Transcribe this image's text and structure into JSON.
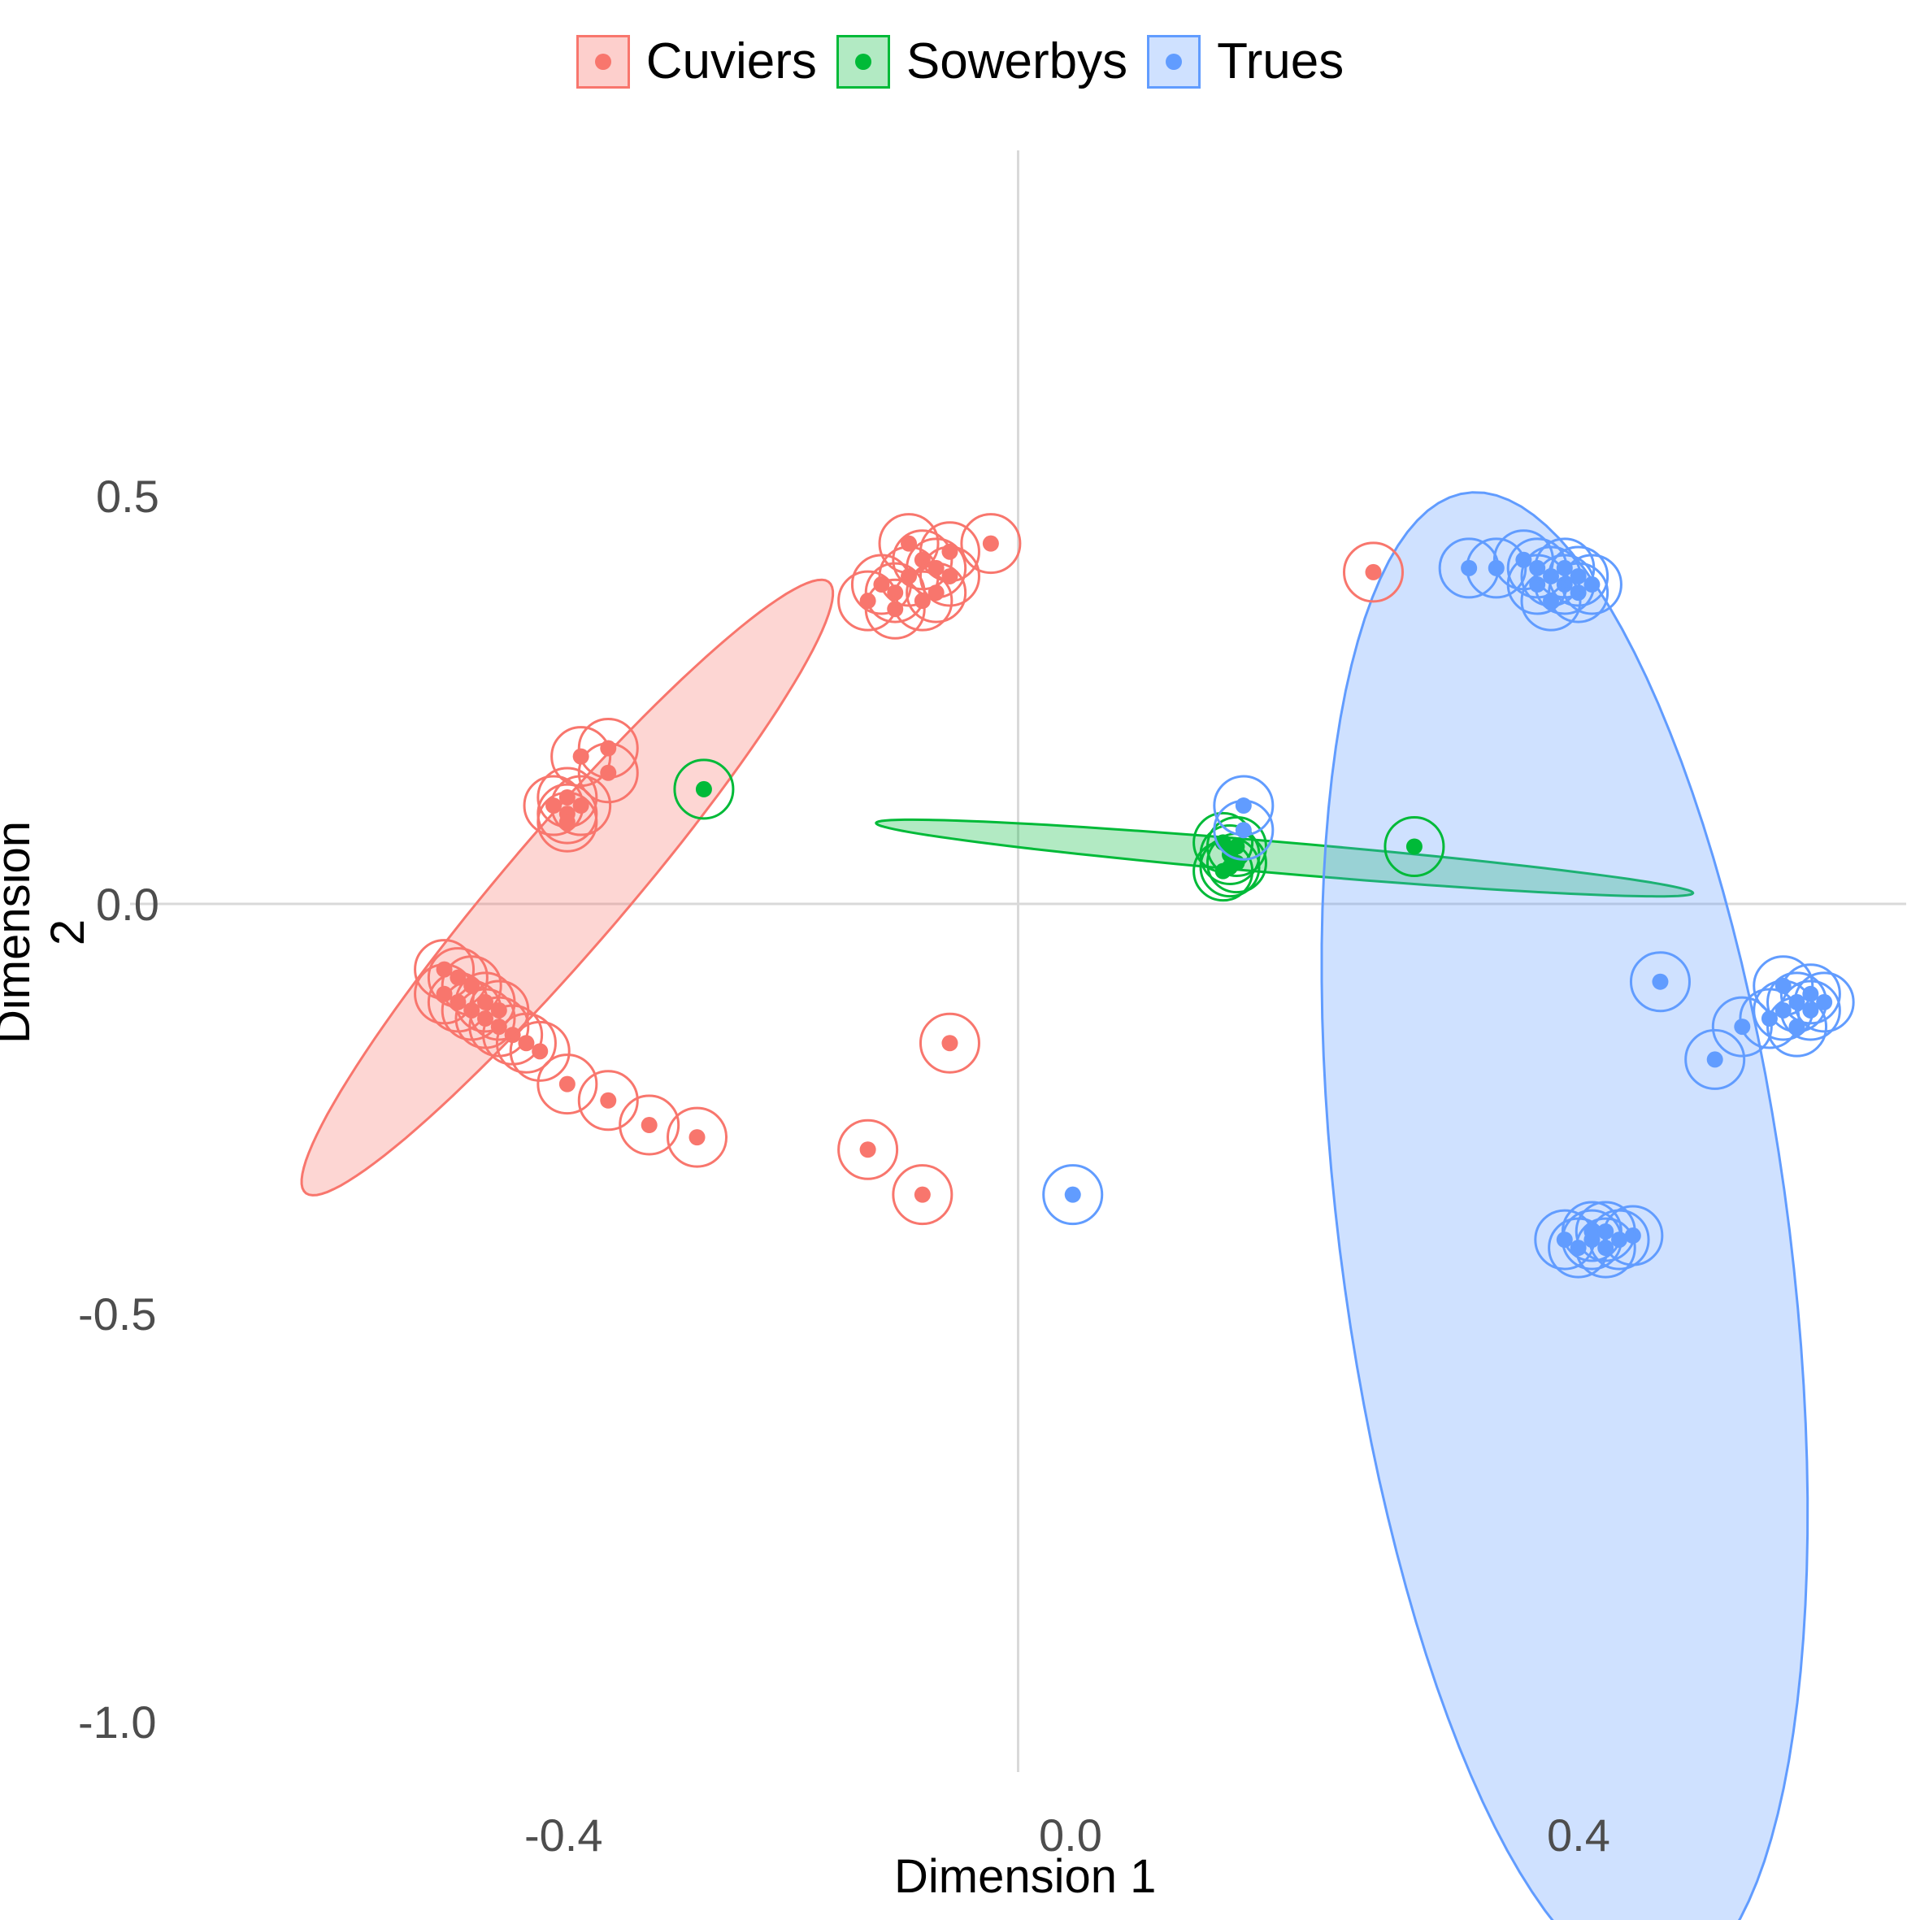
{
  "chart_data": {
    "type": "scatter",
    "title": "",
    "xlabel": "Dimension 1",
    "ylabel": "Dimension 2",
    "xlim": [
      -0.65,
      0.65
    ],
    "ylim": [
      -1.06,
      0.92
    ],
    "x_ticks": [
      "-0.4",
      "0.0",
      "0.4"
    ],
    "y_ticks": [
      "0.5",
      "0.0",
      "-0.5",
      "-1.0"
    ],
    "grid": "zero lines only",
    "legend_position": "top",
    "series": [
      {
        "name": "Cuviers",
        "color": "#F8766D",
        "points": [
          [
            -0.09,
            0.38
          ],
          [
            -0.08,
            0.4
          ],
          [
            -0.07,
            0.42
          ],
          [
            -0.06,
            0.41
          ],
          [
            -0.05,
            0.43
          ],
          [
            -0.09,
            0.36
          ],
          [
            -0.1,
            0.39
          ],
          [
            -0.06,
            0.38
          ],
          [
            -0.08,
            0.44
          ],
          [
            -0.07,
            0.37
          ],
          [
            -0.11,
            0.37
          ],
          [
            -0.05,
            0.4
          ],
          [
            -0.02,
            0.44
          ],
          [
            -0.3,
            0.19
          ],
          [
            -0.32,
            0.18
          ],
          [
            -0.3,
            0.16
          ],
          [
            -0.33,
            0.13
          ],
          [
            -0.32,
            0.12
          ],
          [
            -0.33,
            0.11
          ],
          [
            -0.34,
            0.12
          ],
          [
            -0.33,
            0.1
          ],
          [
            -0.41,
            -0.09
          ],
          [
            -0.42,
            -0.11
          ],
          [
            -0.41,
            -0.12
          ],
          [
            -0.4,
            -0.13
          ],
          [
            -0.39,
            -0.14
          ],
          [
            -0.4,
            -0.1
          ],
          [
            -0.38,
            -0.15
          ],
          [
            -0.37,
            -0.16
          ],
          [
            -0.36,
            -0.17
          ],
          [
            -0.35,
            -0.18
          ],
          [
            -0.42,
            -0.08
          ],
          [
            -0.39,
            -0.12
          ],
          [
            -0.38,
            -0.13
          ],
          [
            -0.33,
            -0.22
          ],
          [
            -0.3,
            -0.24
          ],
          [
            -0.27,
            -0.27
          ],
          [
            -0.235,
            -0.285
          ],
          [
            -0.11,
            -0.3
          ],
          [
            -0.07,
            -0.355
          ],
          [
            -0.05,
            -0.17
          ],
          [
            0.26,
            0.405
          ]
        ]
      },
      {
        "name": "Sowerbys",
        "color": "#00BA38",
        "points": [
          [
            -0.23,
            0.14
          ],
          [
            0.29,
            0.07
          ],
          [
            0.15,
            0.04
          ],
          [
            0.155,
            0.06
          ],
          [
            0.16,
            0.07
          ],
          [
            0.15,
            0.075
          ],
          [
            0.16,
            0.05
          ],
          [
            0.155,
            0.045
          ]
        ]
      },
      {
        "name": "Trues",
        "color": "#619CFF",
        "points": [
          [
            0.33,
            0.41
          ],
          [
            0.35,
            0.41
          ],
          [
            0.37,
            0.42
          ],
          [
            0.38,
            0.41
          ],
          [
            0.39,
            0.4
          ],
          [
            0.4,
            0.39
          ],
          [
            0.41,
            0.38
          ],
          [
            0.39,
            0.37
          ],
          [
            0.38,
            0.39
          ],
          [
            0.4,
            0.41
          ],
          [
            0.42,
            0.39
          ],
          [
            0.41,
            0.4
          ],
          [
            0.47,
            -0.095
          ],
          [
            0.53,
            -0.15
          ],
          [
            0.51,
            -0.19
          ],
          [
            0.55,
            -0.14
          ],
          [
            0.56,
            -0.13
          ],
          [
            0.57,
            -0.12
          ],
          [
            0.58,
            -0.11
          ],
          [
            0.56,
            -0.1
          ],
          [
            0.57,
            -0.15
          ],
          [
            0.58,
            -0.13
          ],
          [
            0.59,
            -0.12
          ],
          [
            0.4,
            -0.41
          ],
          [
            0.41,
            -0.42
          ],
          [
            0.42,
            -0.41
          ],
          [
            0.43,
            -0.42
          ],
          [
            0.44,
            -0.41
          ],
          [
            0.45,
            -0.405
          ],
          [
            0.42,
            -0.4
          ],
          [
            0.43,
            -0.4
          ],
          [
            0.165,
            0.12
          ],
          [
            0.165,
            0.09
          ],
          [
            0.04,
            -0.355
          ]
        ]
      }
    ],
    "ellipses": [
      {
        "series": "Cuviers",
        "center": [
          -0.33,
          0.02
        ],
        "semi_major": 0.42,
        "semi_minor": 0.051,
        "angle_deg": 63.25
      },
      {
        "series": "Sowerbys",
        "center": [
          0.195,
          0.056
        ],
        "semi_major": 0.302,
        "semi_minor": 0.019,
        "angle_deg": -8.16
      },
      {
        "series": "Trues",
        "center": [
          0.4,
          -0.41
        ],
        "semi_major": 0.915,
        "semi_minor": 0.165,
        "angle_deg": 94.23
      }
    ]
  }
}
